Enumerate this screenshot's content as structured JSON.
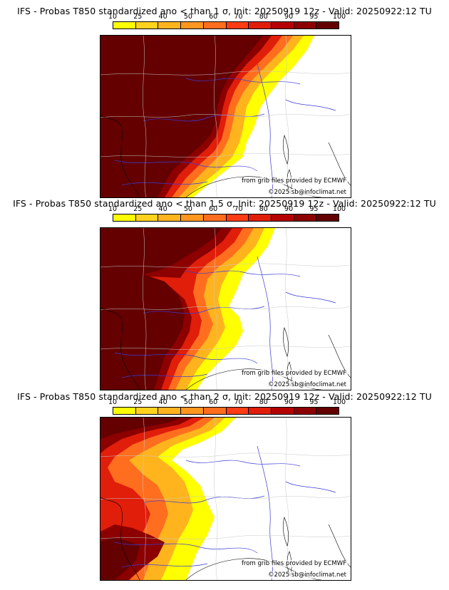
{
  "legend": {
    "ticks": [
      "10",
      "25",
      "40",
      "50",
      "60",
      "70",
      "80",
      "90",
      "95",
      "100"
    ],
    "colors": [
      "#ffff00",
      "#ffd21e",
      "#ffb41e",
      "#ff961e",
      "#ff6e1e",
      "#ff3c14",
      "#e01e0a",
      "#b40000",
      "#8c0000",
      "#640000"
    ]
  },
  "panels": [
    {
      "title": "IFS - Probas T850  standardized ano < than 1 σ, Init: 20250919 12z - Valid: 20250922:12 TU",
      "threshold": 1.0
    },
    {
      "title": "IFS - Probas T850  standardized ano < than 1.5 σ, Init: 20250919 12z - Valid: 20250922:12 TU",
      "threshold": 1.5
    },
    {
      "title": "IFS - Probas T850  standardized ano < than 2 σ, Init: 20250919 12z - Valid: 20250922:12 TU",
      "threshold": 2.0
    }
  ],
  "credits": {
    "source": "from grib files provided by ECMWF",
    "copyright": "©2025 sb@infoclimat.net"
  }
}
